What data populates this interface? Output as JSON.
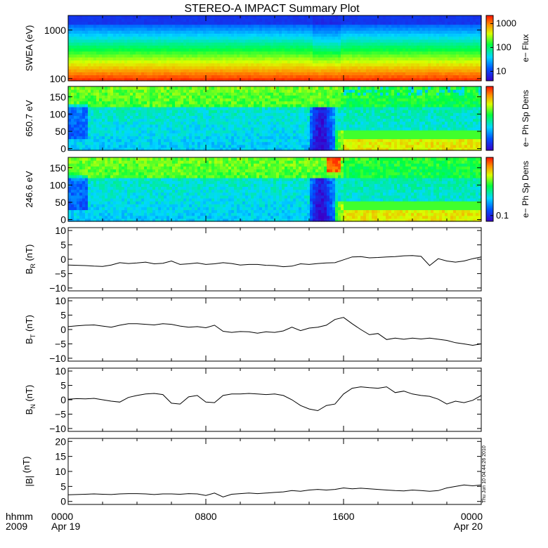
{
  "chart_data": {
    "title": "STEREO-A IMPACT Summary Plot",
    "type": "multi-panel",
    "x_axis": {
      "row1_label": "hhmm",
      "row2_label": "2009",
      "hour_range": [
        0,
        24
      ],
      "ticks": [
        {
          "hour": 0,
          "time": "0000",
          "date": "Apr 19"
        },
        {
          "hour": 8,
          "time": "0800",
          "date": ""
        },
        {
          "hour": 16,
          "time": "1600",
          "date": ""
        },
        {
          "hour": 24,
          "time": "0000",
          "date": "Apr 20"
        }
      ]
    },
    "timestamp": "Thu Jun 10 04:44:26 2010",
    "panels": [
      {
        "key": "swea",
        "type": "heatmap",
        "ylabel": "SWEA (eV)",
        "log_scale": true,
        "ylim": [
          90,
          2000
        ],
        "yticks": [
          {
            "v": 100,
            "label": "100"
          },
          {
            "v": 1000,
            "label": "1000"
          }
        ],
        "colorbar": {
          "label": "e− Flux",
          "log_scale": true,
          "range": [
            4,
            2200
          ],
          "ticks": [
            {
              "v": 10,
              "label": "10"
            },
            {
              "v": 100,
              "label": "100"
            },
            {
              "v": 1000,
              "label": "1000"
            }
          ]
        }
      },
      {
        "key": "pad650",
        "type": "heatmap",
        "ylabel": "650.7 eV",
        "ylim": [
          -5,
          180
        ],
        "yticks": [
          {
            "v": 0,
            "label": "0"
          },
          {
            "v": 50,
            "label": "50"
          },
          {
            "v": 100,
            "label": "100"
          },
          {
            "v": 150,
            "label": "150"
          }
        ],
        "colorbar": {
          "label": "e− Ph Sp Dens",
          "ticks": []
        }
      },
      {
        "key": "pad246",
        "type": "heatmap",
        "ylabel": "246.6 eV",
        "ylim": [
          -5,
          180
        ],
        "yticks": [
          {
            "v": 0,
            "label": "0"
          },
          {
            "v": 50,
            "label": "50"
          },
          {
            "v": 100,
            "label": "100"
          },
          {
            "v": 150,
            "label": "150"
          }
        ],
        "colorbar": {
          "label": "e− Ph Sp Dens",
          "ticks": [
            {
              "frac": 0.09,
              "label": "0.1"
            }
          ]
        }
      },
      {
        "key": "br",
        "type": "line",
        "ylabel_main": "B",
        "ylabel_sub": "R",
        "ylabel_unit": " (nT)",
        "ylim": [
          -11,
          11
        ],
        "yticks": [
          {
            "v": -10,
            "label": "−10"
          },
          {
            "v": -5,
            "label": "−5"
          },
          {
            "v": 0,
            "label": "0"
          },
          {
            "v": 5,
            "label": "5"
          },
          {
            "v": 10,
            "label": "10"
          }
        ],
        "x": [
          0,
          0.5,
          1,
          1.5,
          2,
          2.5,
          3,
          3.5,
          4,
          4.5,
          5,
          5.5,
          6,
          6.5,
          7,
          7.5,
          8,
          8.5,
          9,
          9.5,
          10,
          10.5,
          11,
          11.5,
          12,
          12.5,
          13,
          13.5,
          14,
          14.5,
          15,
          15.5,
          16,
          16.5,
          17,
          17.5,
          18,
          18.5,
          19,
          19.5,
          20,
          20.5,
          21,
          21.5,
          22,
          22.5,
          23,
          23.5,
          24
        ],
        "y": [
          -2,
          -2.1,
          -2.2,
          -2.4,
          -2.5,
          -2,
          -1.2,
          -1.5,
          -1.3,
          -1,
          -1.6,
          -1.4,
          -0.6,
          -1.8,
          -1.6,
          -1.3,
          -1.8,
          -1.6,
          -1.2,
          -1.5,
          -2,
          -1.8,
          -1.8,
          -2.1,
          -2.2,
          -2.6,
          -2.4,
          -1.6,
          -1.8,
          -1.5,
          -1.3,
          -1.2,
          -0.2,
          0.8,
          0.9,
          0.5,
          0.6,
          0.8,
          0.9,
          1.2,
          1.3,
          1.0,
          -2.2,
          0.2,
          -0.6,
          -1.0,
          -0.6,
          0.2,
          0.8
        ]
      },
      {
        "key": "bt",
        "type": "line",
        "ylabel_main": "B",
        "ylabel_sub": "T",
        "ylabel_unit": " (nT)",
        "ylim": [
          -11,
          11
        ],
        "yticks": [
          {
            "v": -10,
            "label": "−10"
          },
          {
            "v": -5,
            "label": "−5"
          },
          {
            "v": 0,
            "label": "0"
          },
          {
            "v": 5,
            "label": "5"
          },
          {
            "v": 10,
            "label": "10"
          }
        ],
        "x": [
          0,
          0.5,
          1,
          1.5,
          2,
          2.5,
          3,
          3.5,
          4,
          4.5,
          5,
          5.5,
          6,
          6.5,
          7,
          7.5,
          8,
          8.5,
          9,
          9.5,
          10,
          10.5,
          11,
          11.5,
          12,
          12.5,
          13,
          13.5,
          14,
          14.5,
          15,
          15.5,
          16,
          16.5,
          17,
          17.5,
          18,
          18.5,
          19,
          19.5,
          20,
          20.5,
          21,
          21.5,
          22,
          22.5,
          23,
          23.5,
          24
        ],
        "y": [
          1.0,
          1.3,
          1.5,
          1.6,
          1.2,
          0.8,
          1.5,
          2.0,
          2.0,
          1.8,
          1.6,
          2.0,
          1.8,
          1.2,
          0.8,
          1.0,
          0.6,
          1.5,
          -0.6,
          -1.0,
          -0.7,
          -0.8,
          -1.3,
          -0.8,
          -1.0,
          -0.5,
          0.8,
          -0.4,
          0.5,
          0.8,
          1.5,
          3.5,
          4.2,
          2.0,
          0,
          -1.8,
          -1.4,
          -3.5,
          -3.0,
          -3.4,
          -3.0,
          -3.3,
          -3.0,
          -3.4,
          -3.8,
          -4.6,
          -5.0,
          -5.5,
          -5.0
        ]
      },
      {
        "key": "bn",
        "type": "line",
        "ylabel_main": "B",
        "ylabel_sub": "N",
        "ylabel_unit": " (nT)",
        "ylim": [
          -11,
          11
        ],
        "yticks": [
          {
            "v": -10,
            "label": "−10"
          },
          {
            "v": -5,
            "label": "−5"
          },
          {
            "v": 0,
            "label": "0"
          },
          {
            "v": 5,
            "label": "5"
          },
          {
            "v": 10,
            "label": "10"
          }
        ],
        "x": [
          0,
          0.5,
          1,
          1.5,
          2,
          2.5,
          3,
          3.5,
          4,
          4.5,
          5,
          5.5,
          6,
          6.5,
          7,
          7.5,
          8,
          8.5,
          9,
          9.5,
          10,
          10.5,
          11,
          11.5,
          12,
          12.5,
          13,
          13.5,
          14,
          14.5,
          15,
          15.5,
          16,
          16.5,
          17,
          17.5,
          18,
          18.5,
          19,
          19.5,
          20,
          20.5,
          21,
          21.5,
          22,
          22.5,
          23,
          23.5,
          24
        ],
        "y": [
          0.2,
          0.4,
          0.3,
          0.5,
          0,
          -0.5,
          -0.8,
          0.8,
          1.5,
          2.0,
          2.2,
          1.8,
          -1.2,
          -1.5,
          1.0,
          1.5,
          -0.8,
          -1.0,
          1.5,
          2.0,
          2.0,
          2.2,
          2.0,
          1.8,
          2.0,
          1.5,
          0,
          -2.0,
          -3.2,
          -3.8,
          -2.0,
          -1.5,
          2.0,
          4.0,
          4.5,
          4.2,
          4.0,
          4.5,
          2.5,
          3.0,
          2.0,
          1.5,
          1.2,
          0.2,
          -1.5,
          -0.5,
          -1.0,
          -0.2,
          1.5
        ]
      },
      {
        "key": "bmag",
        "type": "line",
        "ylabel_main": "|B|",
        "ylabel_sub": "",
        "ylabel_unit": " (nT)",
        "ylim": [
          -1,
          21
        ],
        "yticks": [
          {
            "v": 0,
            "label": "0"
          },
          {
            "v": 5,
            "label": "5"
          },
          {
            "v": 10,
            "label": "10"
          },
          {
            "v": 15,
            "label": "15"
          },
          {
            "v": 20,
            "label": "20"
          }
        ],
        "x": [
          0,
          0.5,
          1,
          1.5,
          2,
          2.5,
          3,
          3.5,
          4,
          4.5,
          5,
          5.5,
          6,
          6.5,
          7,
          7.5,
          8,
          8.5,
          9,
          9.5,
          10,
          10.5,
          11,
          11.5,
          12,
          12.5,
          13,
          13.5,
          14,
          14.5,
          15,
          15.5,
          16,
          16.5,
          17,
          17.5,
          18,
          18.5,
          19,
          19.5,
          20,
          20.5,
          21,
          21.5,
          22,
          22.5,
          23,
          23.5,
          24
        ],
        "y": [
          2.2,
          2.3,
          2.4,
          2.5,
          2.4,
          2.3,
          2.5,
          2.6,
          2.6,
          2.5,
          2.3,
          2.5,
          2.5,
          2.4,
          2.6,
          2.5,
          2.0,
          2.8,
          1.5,
          2.4,
          2.6,
          2.8,
          2.6,
          2.8,
          3.0,
          3.2,
          3.6,
          3.4,
          3.8,
          4.0,
          3.8,
          4.0,
          4.5,
          4.2,
          4.4,
          4.2,
          4.0,
          3.8,
          3.6,
          3.5,
          3.8,
          3.6,
          3.4,
          3.6,
          4.5,
          5.0,
          5.5,
          5.2,
          5.5
        ]
      }
    ]
  }
}
